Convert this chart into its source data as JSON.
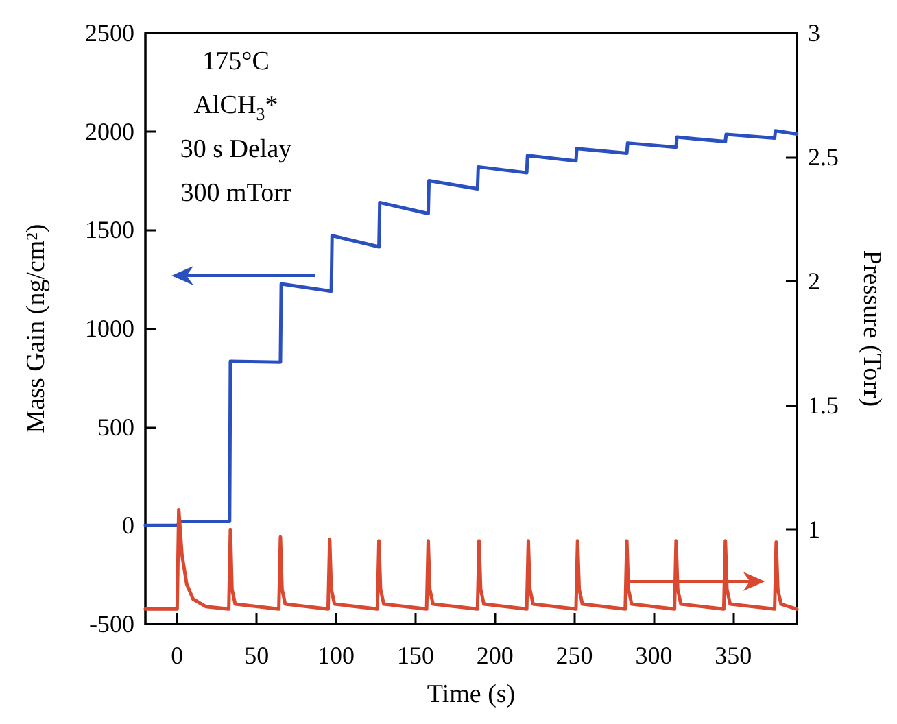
{
  "chart_data": {
    "type": "line",
    "xlabel": "Time (s)",
    "ylabel": "Mass Gain (ng/cm²)",
    "y2label": "Pressure (Torr)",
    "annotations": [
      "175°C",
      "AlCH$_{3}$*",
      "30 s Delay",
      "300 mTorr"
    ],
    "xlim": [
      -20,
      390
    ],
    "xticks": [
      0,
      50,
      100,
      150,
      200,
      250,
      300,
      350
    ],
    "ylim": [
      -500,
      2500
    ],
    "yticks": [
      -500,
      0,
      500,
      1000,
      1500,
      2000,
      2500
    ],
    "y2lim": [
      0.62,
      3
    ],
    "y2ticks": [
      1,
      1.5,
      2,
      2.5,
      3
    ],
    "grid": false,
    "marker": "none",
    "line_style": "solid",
    "series": [
      {
        "color": "#2a50c0",
        "x": [
          -20,
          0,
          2,
          33,
          33.5,
          65,
          65.5,
          97,
          97.5,
          127,
          127.5,
          158,
          158.5,
          189,
          189.5,
          220,
          220.5,
          251,
          251.5,
          283,
          283.5,
          314,
          314.5,
          345,
          345.5,
          376,
          376.5,
          390
        ],
        "values": [
          0,
          0,
          20,
          20,
          833,
          829,
          1226,
          1189,
          1471,
          1414,
          1639,
          1583,
          1750,
          1708,
          1820,
          1790,
          1878,
          1850,
          1913,
          1889,
          1941,
          1920,
          1971,
          1948,
          1985,
          1966,
          2003,
          1987
        ]
      },
      {
        "color": "#d9482f",
        "axis": "y2",
        "x": [
          -20,
          0,
          1,
          3,
          6,
          10,
          18,
          32.5,
          33.5,
          34.5,
          36.5,
          64,
          65,
          66,
          68,
          95,
          96,
          97,
          99,
          126,
          127,
          128,
          130,
          157,
          158,
          159,
          161,
          189,
          190,
          191,
          193,
          220,
          221,
          222,
          224,
          251,
          252,
          253,
          255,
          282,
          283,
          284,
          286,
          313,
          314,
          315,
          317,
          344,
          345,
          346,
          348,
          376,
          377,
          378,
          380,
          390
        ],
        "values": [
          0.68,
          0.68,
          1.08,
          0.9,
          0.78,
          0.72,
          0.69,
          0.68,
          1.0,
          0.76,
          0.7,
          0.68,
          0.97,
          0.76,
          0.7,
          0.68,
          0.96,
          0.76,
          0.7,
          0.68,
          0.955,
          0.76,
          0.7,
          0.68,
          0.955,
          0.76,
          0.7,
          0.68,
          0.955,
          0.76,
          0.7,
          0.68,
          0.955,
          0.76,
          0.7,
          0.68,
          0.955,
          0.76,
          0.7,
          0.68,
          0.955,
          0.76,
          0.7,
          0.68,
          0.955,
          0.76,
          0.7,
          0.68,
          0.955,
          0.76,
          0.7,
          0.68,
          0.95,
          0.76,
          0.7,
          0.68
        ]
      }
    ]
  }
}
